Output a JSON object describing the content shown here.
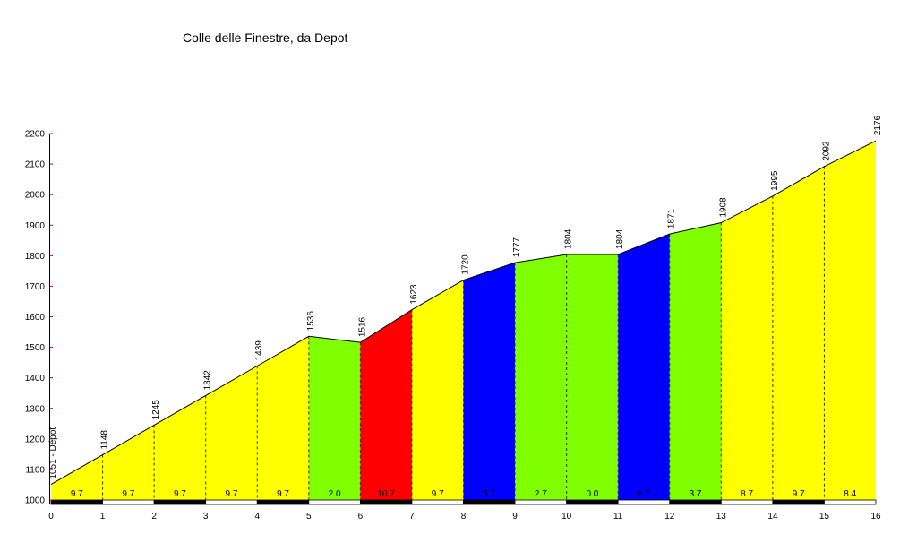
{
  "chart_data": {
    "type": "area",
    "title": "Colle delle Finestre, da Depot",
    "xlabel": "",
    "ylabel": "",
    "xlim": [
      0,
      16
    ],
    "ylim": [
      1000,
      2200
    ],
    "x_ticks": [
      "0",
      "1",
      "2",
      "3",
      "4",
      "5",
      "6",
      "7",
      "8",
      "9",
      "10",
      "11",
      "12",
      "13",
      "14",
      "15",
      "16"
    ],
    "y_ticks": [
      "1000",
      "1100",
      "1200",
      "1300",
      "1400",
      "1500",
      "1600",
      "1700",
      "1800",
      "1900",
      "2000",
      "2100",
      "2200"
    ],
    "x": [
      0,
      1,
      2,
      3,
      4,
      5,
      6,
      7,
      8,
      9,
      10,
      11,
      12,
      13,
      14,
      15,
      16
    ],
    "elevations": [
      1051,
      1148,
      1245,
      1342,
      1439,
      1536,
      1516,
      1623,
      1720,
      1777,
      1804,
      1804,
      1871,
      1908,
      1995,
      2092,
      2176
    ],
    "point_labels": [
      "1051 - Dépot",
      "1148",
      "1245",
      "1342",
      "1439",
      "1536",
      "1516",
      "1623",
      "1720",
      "1777",
      "1804",
      "1804",
      "1871",
      "1908",
      "1995",
      "2092",
      "2176"
    ],
    "segment_gradients": [
      "9.7",
      "9.7",
      "9.7",
      "9.7",
      "9.7",
      "2.0",
      "10.7",
      "9.7",
      "5.7",
      "2.7",
      "0.0",
      "6.7",
      "3.7",
      "8.7",
      "9.7",
      "8.4"
    ],
    "segment_colors": [
      "#ffff00",
      "#ffff00",
      "#ffff00",
      "#ffff00",
      "#ffff00",
      "#80ff00",
      "#ff0000",
      "#ffff00",
      "#0000ff",
      "#80ff00",
      "#80ff00",
      "#0000ff",
      "#80ff00",
      "#ffff00",
      "#ffff00",
      "#ffff00"
    ],
    "grid": false
  }
}
